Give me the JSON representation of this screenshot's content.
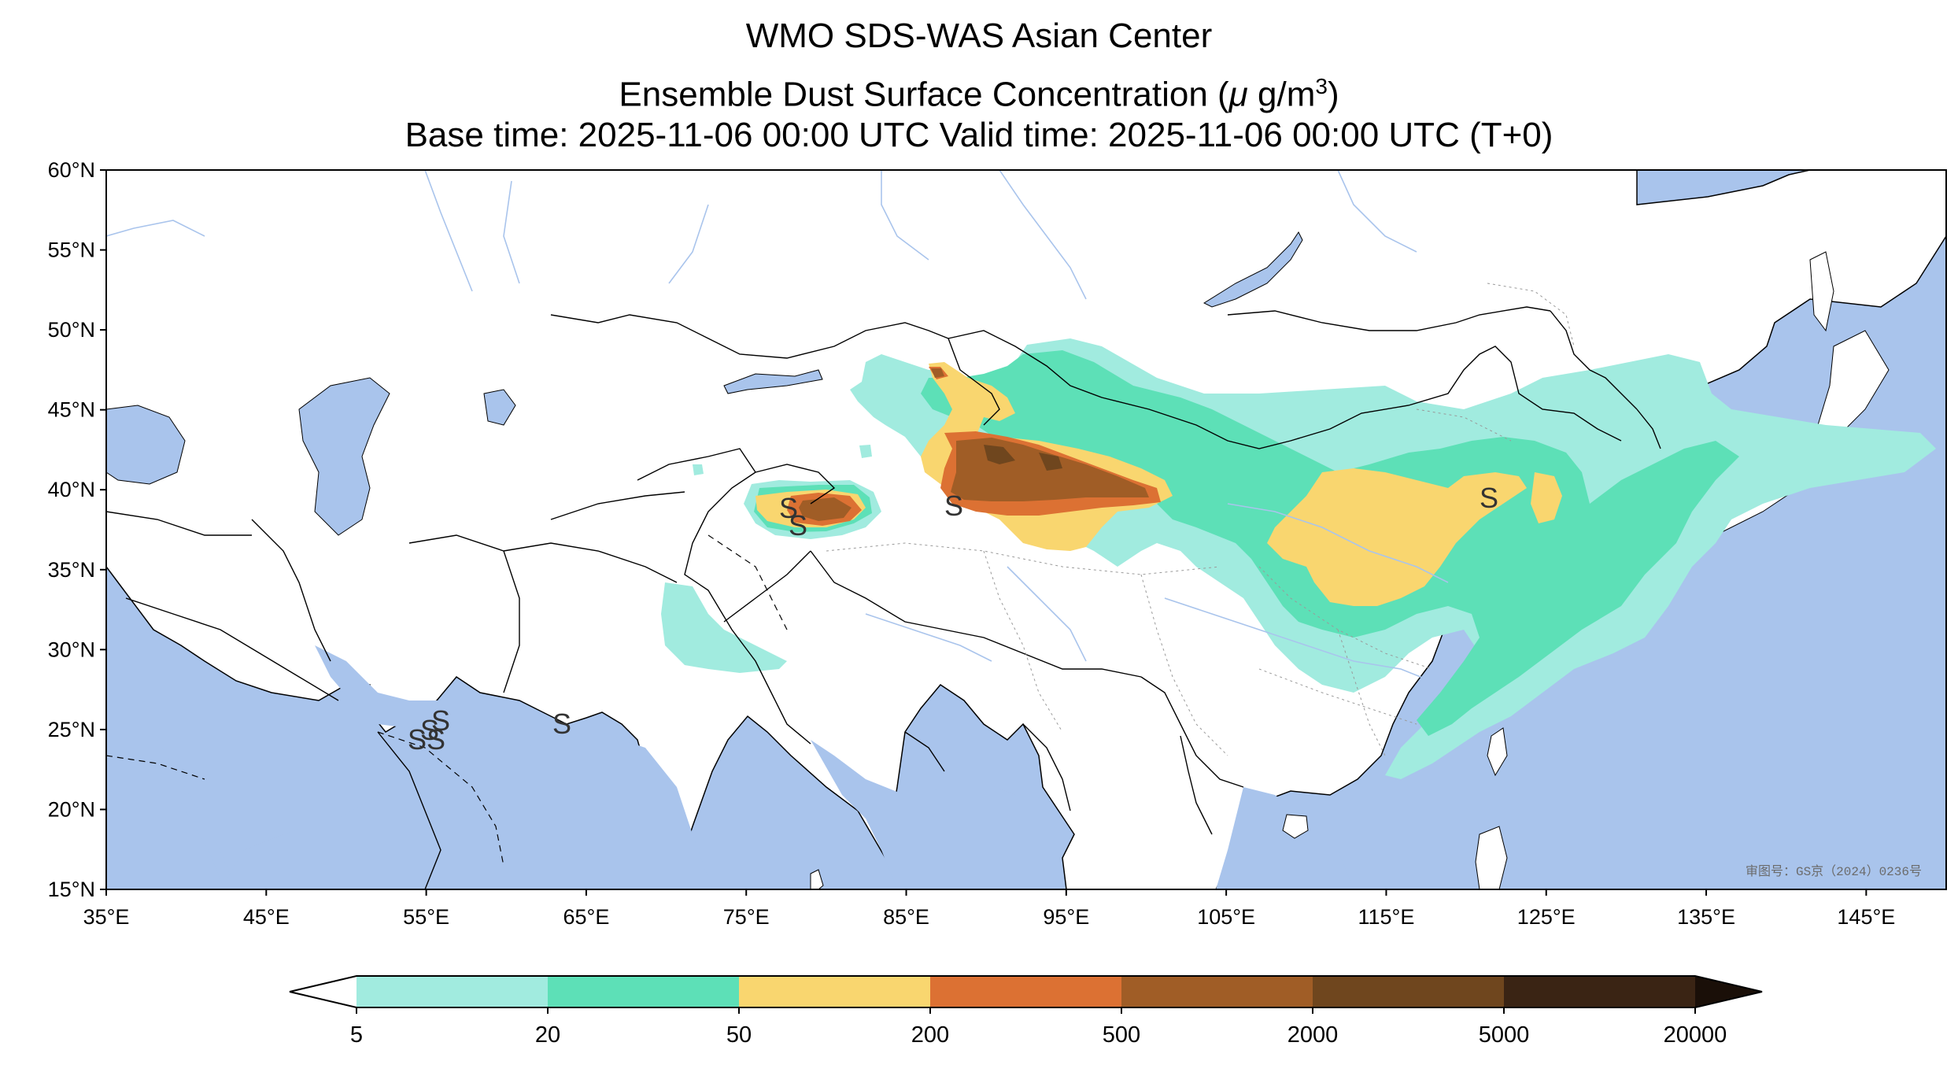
{
  "title": {
    "line1": "WMO SDS-WAS Asian Center",
    "line2_prefix": "Ensemble Dust Surface Concentration (",
    "line2_mu": "μ",
    "line2_unit": " g/m",
    "line2_exp": "3",
    "line2_suffix": ")",
    "line3": "Base time: 2025-11-06 00:00 UTC Valid time: 2025-11-06 00:00 UTC (T+0)"
  },
  "map": {
    "lon_range": [
      35,
      150
    ],
    "lat_range": [
      15,
      60
    ],
    "lat_ticks": [
      "60°N",
      "55°N",
      "50°N",
      "45°N",
      "40°N",
      "35°N",
      "30°N",
      "25°N",
      "20°N",
      "15°N"
    ],
    "lon_ticks": [
      "35°E",
      "45°E",
      "55°E",
      "65°E",
      "75°E",
      "85°E",
      "95°E",
      "105°E",
      "115°E",
      "125°E",
      "135°E",
      "145°E"
    ],
    "watermark": "审图号：GS京（2024）0236号",
    "ocean_color": "#a9c4ec",
    "land_color": "#ffffff"
  },
  "colorbar": {
    "labels": [
      "5",
      "20",
      "50",
      "200",
      "500",
      "2000",
      "5000",
      "20000"
    ],
    "colors": [
      "#a1ebdf",
      "#5de0b7",
      "#f9d66f",
      "#dc7133",
      "#a05d26",
      "#6f461e",
      "#3a2414"
    ],
    "under_color": "#ffffff",
    "over_color": "#1a0f08"
  }
}
